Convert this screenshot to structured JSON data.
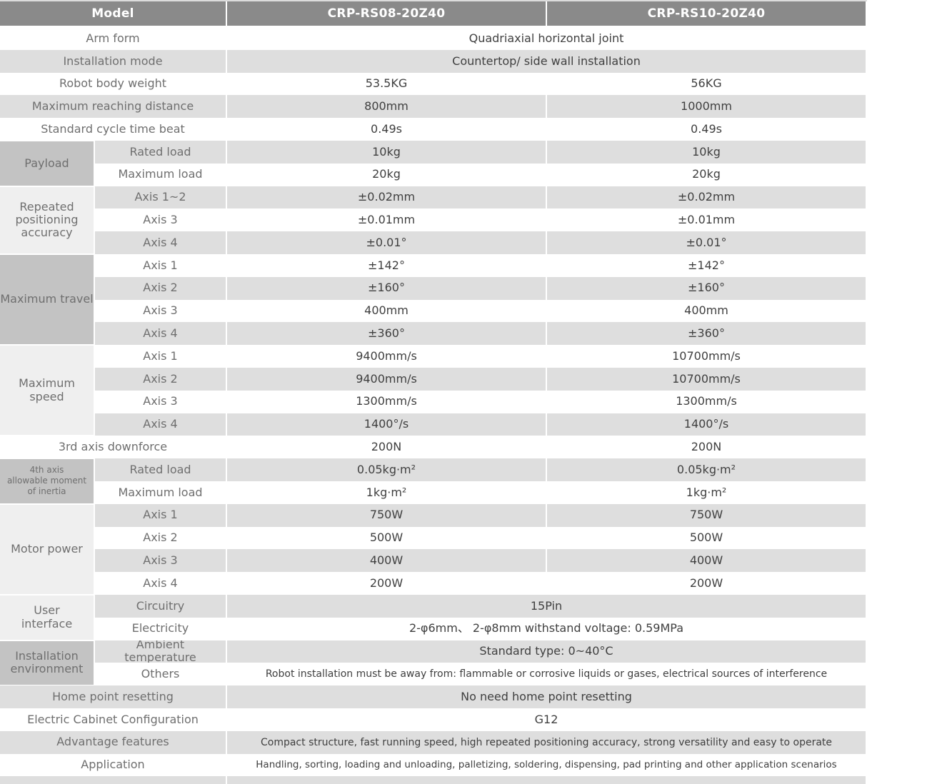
{
  "colors": {
    "header_bg": "#8a8a8a",
    "header_text": "#ffffff",
    "row_alt_bg": "#dedede",
    "group_medium_bg": "#c3c3c3",
    "group_light_bg": "#efefef",
    "label_text": "#6f6f6f",
    "value_text": "#3f3f3f"
  },
  "table": {
    "header": {
      "model_label": "Model",
      "model_a": "CRP-RS08-20Z40",
      "model_b": "CRP-RS10-20Z40"
    },
    "rows": [
      {
        "label": "Arm form",
        "value_span": "Quadriaxial horizontal joint"
      },
      {
        "label": "Installation mode",
        "value_span": "Countertop/ side wall installation"
      },
      {
        "label": "Robot body weight",
        "values": [
          "53.5KG",
          "56KG"
        ]
      },
      {
        "label": "Maximum reaching distance",
        "values": [
          "800mm",
          "1000mm"
        ]
      },
      {
        "label": "Standard cycle time beat",
        "values": [
          "0.49s",
          "0.49s"
        ]
      },
      {
        "group": "Payload",
        "group_shade": "medium",
        "group_rows": 2,
        "sub": "Rated load",
        "values": [
          "10kg",
          "10kg"
        ]
      },
      {
        "sub": "Maximum load",
        "values": [
          "20kg",
          "20kg"
        ]
      },
      {
        "group": "Repeated\npositioning\naccuracy",
        "group_shade": "light",
        "group_rows": 3,
        "sub": "Axis 1~2",
        "values": [
          "±0.02mm",
          "±0.02mm"
        ]
      },
      {
        "sub": "Axis 3",
        "values": [
          "±0.01mm",
          "±0.01mm"
        ]
      },
      {
        "sub": "Axis 4",
        "values": [
          "±0.01°",
          "±0.01°"
        ]
      },
      {
        "group": "Maximum travel",
        "group_shade": "medium",
        "group_rows": 4,
        "sub": "Axis 1",
        "values": [
          "±142°",
          "±142°"
        ]
      },
      {
        "sub": "Axis 2",
        "values": [
          "±160°",
          "±160°"
        ]
      },
      {
        "sub": "Axis 3",
        "values": [
          "400mm",
          "400mm"
        ]
      },
      {
        "sub": "Axis 4",
        "values": [
          "±360°",
          "±360°"
        ]
      },
      {
        "group": "Maximum speed",
        "group_shade": "light",
        "group_rows": 4,
        "sub": "Axis 1",
        "values": [
          "9400mm/s",
          "10700mm/s"
        ]
      },
      {
        "sub": "Axis 2",
        "values": [
          "9400mm/s",
          "10700mm/s"
        ]
      },
      {
        "sub": "Axis 3",
        "values": [
          "1300mm/s",
          "1300mm/s"
        ]
      },
      {
        "sub": "Axis 4",
        "values": [
          "1400°/s",
          "1400°/s"
        ]
      },
      {
        "label": "3rd axis downforce",
        "values": [
          "200N",
          "200N"
        ]
      },
      {
        "group": "4th axis\nallowable moment\nof inertia",
        "group_shade": "medium",
        "group_small": true,
        "group_rows": 2,
        "sub": "Rated load",
        "values": [
          "0.05kg·m²",
          "0.05kg·m²"
        ]
      },
      {
        "sub": "Maximum load",
        "values": [
          "1kg·m²",
          "1kg·m²"
        ]
      },
      {
        "group": "Motor power",
        "group_shade": "light",
        "group_rows": 4,
        "sub": "Axis 1",
        "values": [
          "750W",
          "750W"
        ]
      },
      {
        "sub": "Axis 2",
        "values": [
          "500W",
          "500W"
        ]
      },
      {
        "sub": "Axis 3",
        "values": [
          "400W",
          "400W"
        ]
      },
      {
        "sub": "Axis 4",
        "values": [
          "200W",
          "200W"
        ]
      },
      {
        "group": "User\ninterface",
        "group_shade": "light",
        "group_rows": 2,
        "sub": "Circuitry",
        "value_span": "15Pin"
      },
      {
        "sub": "Electricity",
        "value_span": "2-φ6mm、 2-φ8mm withstand voltage: 0.59MPa"
      },
      {
        "group": "Installation\nenvironment",
        "group_shade": "medium",
        "group_rows": 2,
        "sub": "Ambient\ntemperature",
        "value_span": "Standard type:  0~40°C"
      },
      {
        "sub": "Others",
        "value_span": "Robot installation must be away from: flammable or corrosive liquids or gases, electrical sources of interference",
        "size": "small"
      },
      {
        "label": "Home point resetting",
        "value_span": "No need home point resetting"
      },
      {
        "label": "Electric Cabinet Configuration",
        "value_span": "G12"
      },
      {
        "label": "Advantage features",
        "value_span": "Compact structure, fast running speed, high repeated positioning accuracy, strong versatility and easy to operate",
        "size": "small"
      },
      {
        "label": "Application",
        "value_span": "Handling, sorting, loading and unloading, palletizing, soldering, dispensing, pad printing and other application scenarios",
        "size": "xsmall"
      },
      {
        "partial": true
      }
    ]
  }
}
